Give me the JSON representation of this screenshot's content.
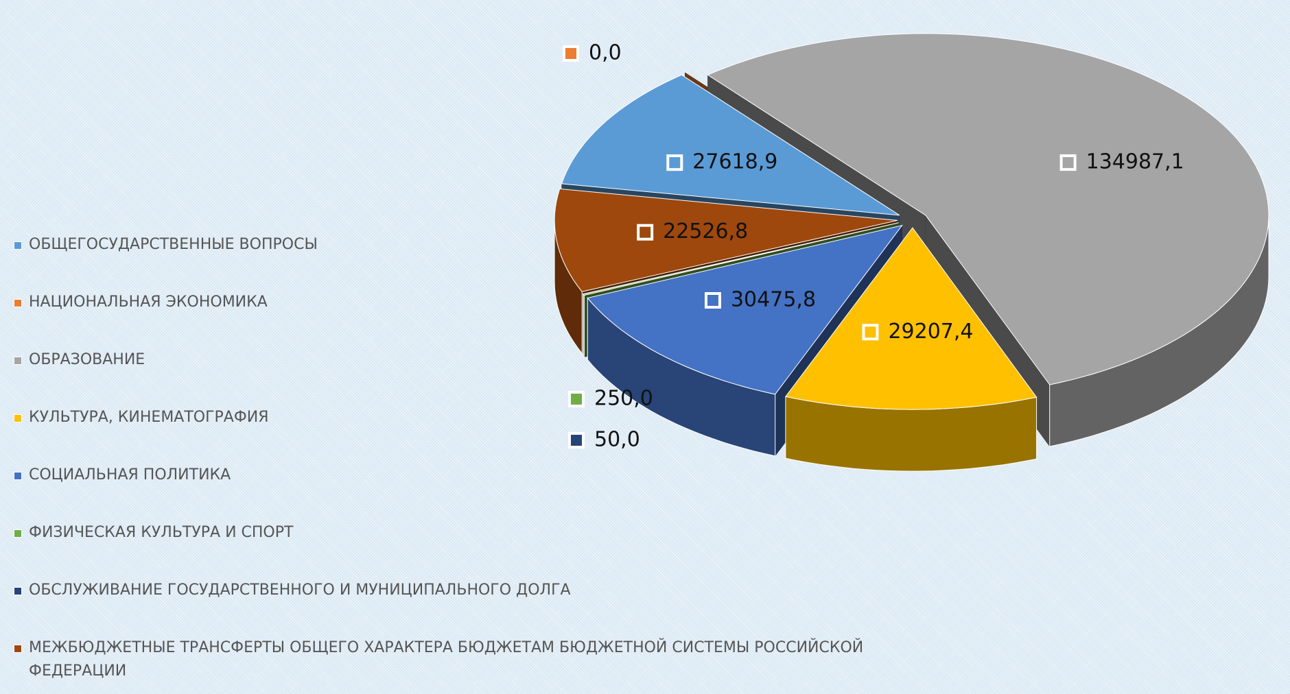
{
  "chart_data": {
    "type": "pie",
    "categories": [
      "ОБЩЕГОСУДАРСТВЕННЫЕ ВОПРОСЫ",
      "НАЦИОНАЛЬНАЯ ЭКОНОМИКА",
      "ОБРАЗОВАНИЕ",
      "КУЛЬТУРА, КИНЕМАТОГРАФИЯ",
      "СОЦИАЛЬНАЯ ПОЛИТИКА",
      "ФИЗИЧЕСКАЯ КУЛЬТУРА И СПОРТ",
      "ОБСЛУЖИВАНИЕ ГОСУДАРСТВЕННОГО И МУНИЦИПАЛЬНОГО ДОЛГА",
      "МЕЖБЮДЖЕТНЫЕ ТРАНСФЕРТЫ ОБЩЕГО ХАРАКТЕРА БЮДЖЕТАМ БЮДЖЕТНОЙ СИСТЕМЫ РОССИЙСКОЙ ФЕДЕРАЦИИ"
    ],
    "values": [
      27618.9,
      0,
      134987.1,
      29207.4,
      30475.8,
      250,
      50,
      22526.8
    ],
    "value_labels": [
      "27618,9",
      "0,0",
      "134987,1",
      "29207,4",
      "30475,8",
      "250,0",
      "50,0",
      "22526,8"
    ],
    "colors": [
      "#5b9bd5",
      "#ed7d31",
      "#a5a5a5",
      "#ffc000",
      "#4472c4",
      "#70ad47",
      "#264478",
      "#9e480e"
    ],
    "legend": "left"
  }
}
